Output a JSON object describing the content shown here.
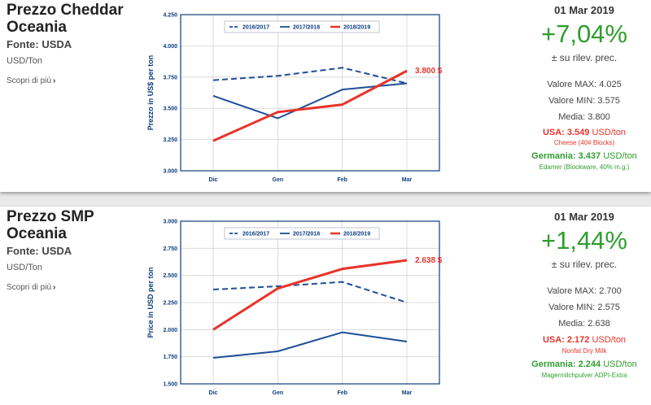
{
  "cards": [
    {
      "title": "Prezzo Cheddar Oceania",
      "source": "Fonte: USDA",
      "unit": "USD/Ton",
      "more_label": "Scopri di più",
      "date": "01 Mar 2019",
      "change": "+7,04%",
      "change_label": "± su rilev. prec.",
      "max_label": "Valore MAX: 4.025",
      "min_label": "Valore MIN: 3.575",
      "mean_label": "Media: 3.800",
      "usa_prefix": "USA: 3.549",
      "usa_unit": " USD/ton",
      "usa_product": "Cheese (40# Blocks)",
      "de_prefix": "Germania: 3.437",
      "de_unit": " USD/ton",
      "de_product": "Edamer (Blockware, 40% m.g.)"
    },
    {
      "title": "Prezzo SMP Oceania",
      "source": "Fonte: USDA",
      "unit": "USD/Ton",
      "more_label": "Scopri di più",
      "date": "01 Mar 2019",
      "change": "+1,44%",
      "change_label": "± su rilev. prec.",
      "max_label": "Valore MAX: 2.700",
      "min_label": "Valore MIN: 2.575",
      "mean_label": "Media: 2.638",
      "usa_prefix": "USA: 2.172",
      "usa_unit": " USD/ton",
      "usa_product": "Nonfat Dry Milk",
      "de_prefix": "Germania: 2.244",
      "de_unit": " USD/ton",
      "de_product": "Magermilchpulver ADPI-Extra"
    }
  ],
  "colors": {
    "series_blue": "#1f4e99",
    "series_red": "#e8332a",
    "axis": "#0c3c80",
    "grid": "#d3d3d3",
    "positive_green": "#2e9e2e"
  },
  "chart_data": [
    {
      "type": "line",
      "ylabel": "Prezzo in US$ per ton",
      "categories": [
        "Dic",
        "Gen",
        "Feb",
        "Mar"
      ],
      "y_ticks": [
        "3.000",
        "3.250",
        "3.500",
        "3.750",
        "4.000",
        "4.250"
      ],
      "ylim": [
        3000,
        4250
      ],
      "grid": true,
      "legend_position": "top",
      "last_label": "3.800 $",
      "series": [
        {
          "name": "2016/2017",
          "style": "dashed",
          "color": "#1f4e99",
          "values": [
            3725,
            3760,
            3825,
            3700
          ]
        },
        {
          "name": "2017/2018",
          "style": "solid",
          "color": "#1f4e99",
          "values": [
            3600,
            3420,
            3650,
            3700
          ]
        },
        {
          "name": "2018/2019",
          "style": "solid",
          "color": "#e8332a",
          "values": [
            3240,
            3470,
            3530,
            3800
          ]
        }
      ]
    },
    {
      "type": "line",
      "ylabel": "Price in USD per ton",
      "categories": [
        "Dic",
        "Gen",
        "Feb",
        "Mar"
      ],
      "y_ticks": [
        "1.500",
        "1.750",
        "2.000",
        "2.250",
        "2.500",
        "2.750",
        "3.000"
      ],
      "ylim": [
        1500,
        3000
      ],
      "grid": true,
      "legend_position": "top",
      "last_label": "2.638 $",
      "series": [
        {
          "name": "2016/2017",
          "style": "dashed",
          "color": "#1f4e99",
          "values": [
            2370,
            2400,
            2440,
            2250
          ]
        },
        {
          "name": "2017/2018",
          "style": "solid",
          "color": "#1f4e99",
          "values": [
            1740,
            1800,
            1975,
            1890
          ]
        },
        {
          "name": "2018/2019",
          "style": "solid",
          "color": "#e8332a",
          "values": [
            2000,
            2380,
            2560,
            2640
          ]
        }
      ]
    }
  ]
}
